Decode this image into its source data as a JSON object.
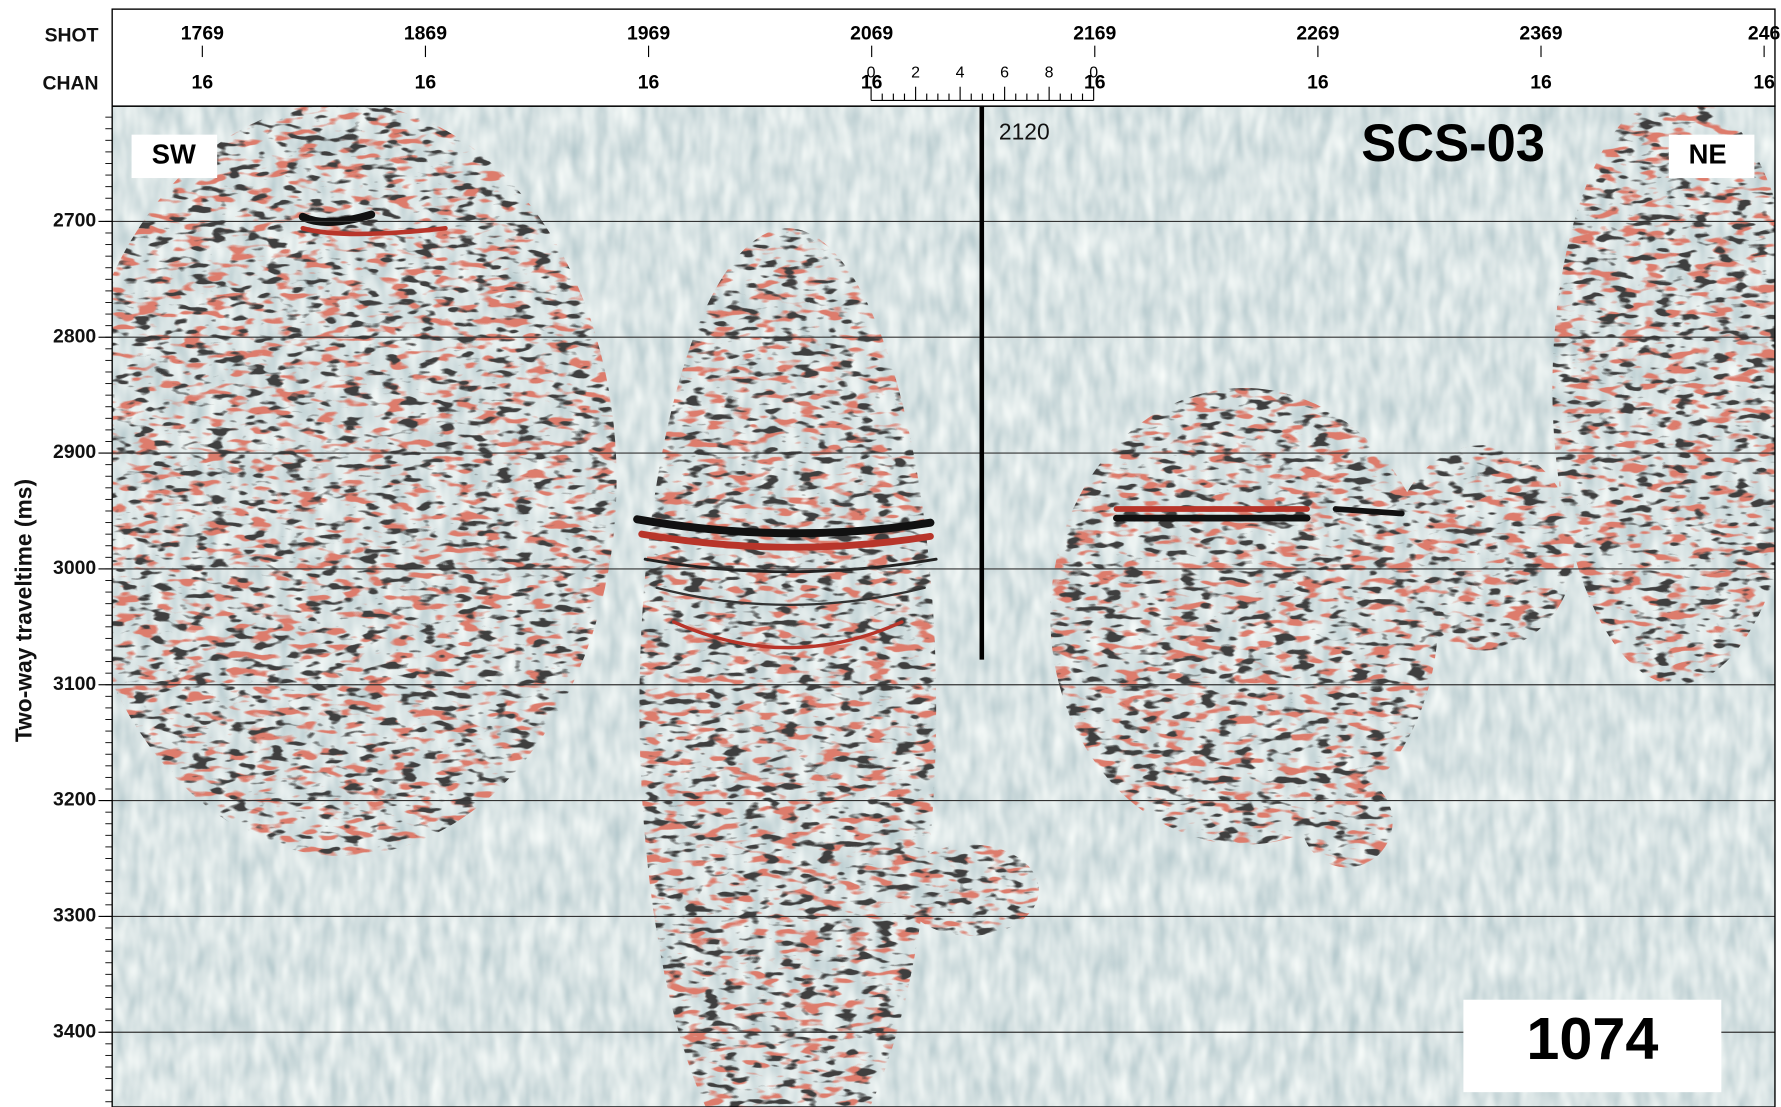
{
  "header": {
    "shot_label": "SHOT",
    "chan_label": "CHAN",
    "shots": [
      1769,
      1869,
      1969,
      2069,
      2169,
      2269,
      2369,
      246
    ],
    "channels": [
      16,
      16,
      16,
      16,
      16,
      16,
      16,
      16
    ],
    "scale_labels": [
      0,
      2,
      4,
      6,
      8,
      0
    ]
  },
  "axis": {
    "label": "Two-way traveltime (ms)",
    "ticks": [
      2700,
      2800,
      2900,
      3000,
      3100,
      3200,
      3300,
      3400
    ]
  },
  "annotations": {
    "line": "SCS-03",
    "left": "SW",
    "right": "NE",
    "shotpoint": "2120",
    "site": "1074"
  }
}
